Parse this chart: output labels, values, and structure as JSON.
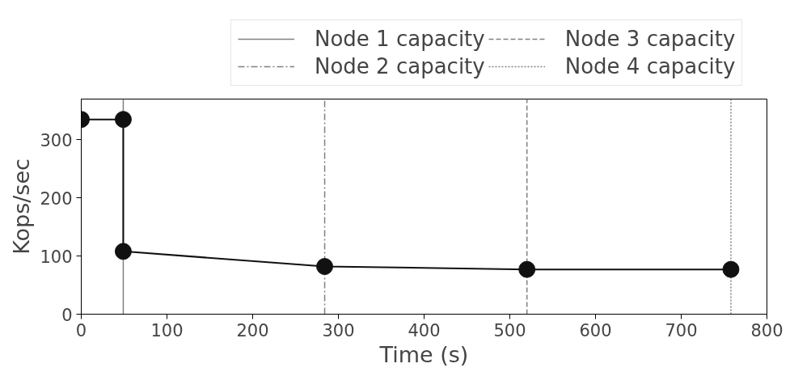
{
  "chart_data": {
    "type": "line",
    "xlabel": "Time (s)",
    "ylabel": "Kops/sec",
    "x": [
      0,
      49,
      49,
      284,
      520,
      758
    ],
    "series": [
      {
        "color": "#111111",
        "values": [
          335,
          335,
          108,
          82,
          77,
          77
        ]
      }
    ],
    "marker": "circle",
    "line_style": "solid",
    "xlim": [
      0,
      800
    ],
    "xticks": [
      0,
      100,
      200,
      300,
      400,
      500,
      600,
      700,
      800
    ],
    "ylim": [
      0,
      370
    ],
    "yticks": [
      0,
      100,
      200,
      300
    ],
    "grid": false,
    "legend": "top",
    "ref_lines": [
      {
        "axis": "x",
        "value": 49,
        "label": "Node 1 capacity",
        "color": "#808080",
        "line_style": "solid"
      },
      {
        "axis": "x",
        "value": 284,
        "label": "Node 2 capacity",
        "color": "#808080",
        "line_style": "dashdot"
      },
      {
        "axis": "x",
        "value": 520,
        "label": "Node 3 capacity",
        "color": "#808080",
        "line_style": "dashed"
      },
      {
        "axis": "x",
        "value": 758,
        "label": "Node 4 capacity",
        "color": "#808080",
        "line_style": "dotted"
      }
    ]
  }
}
